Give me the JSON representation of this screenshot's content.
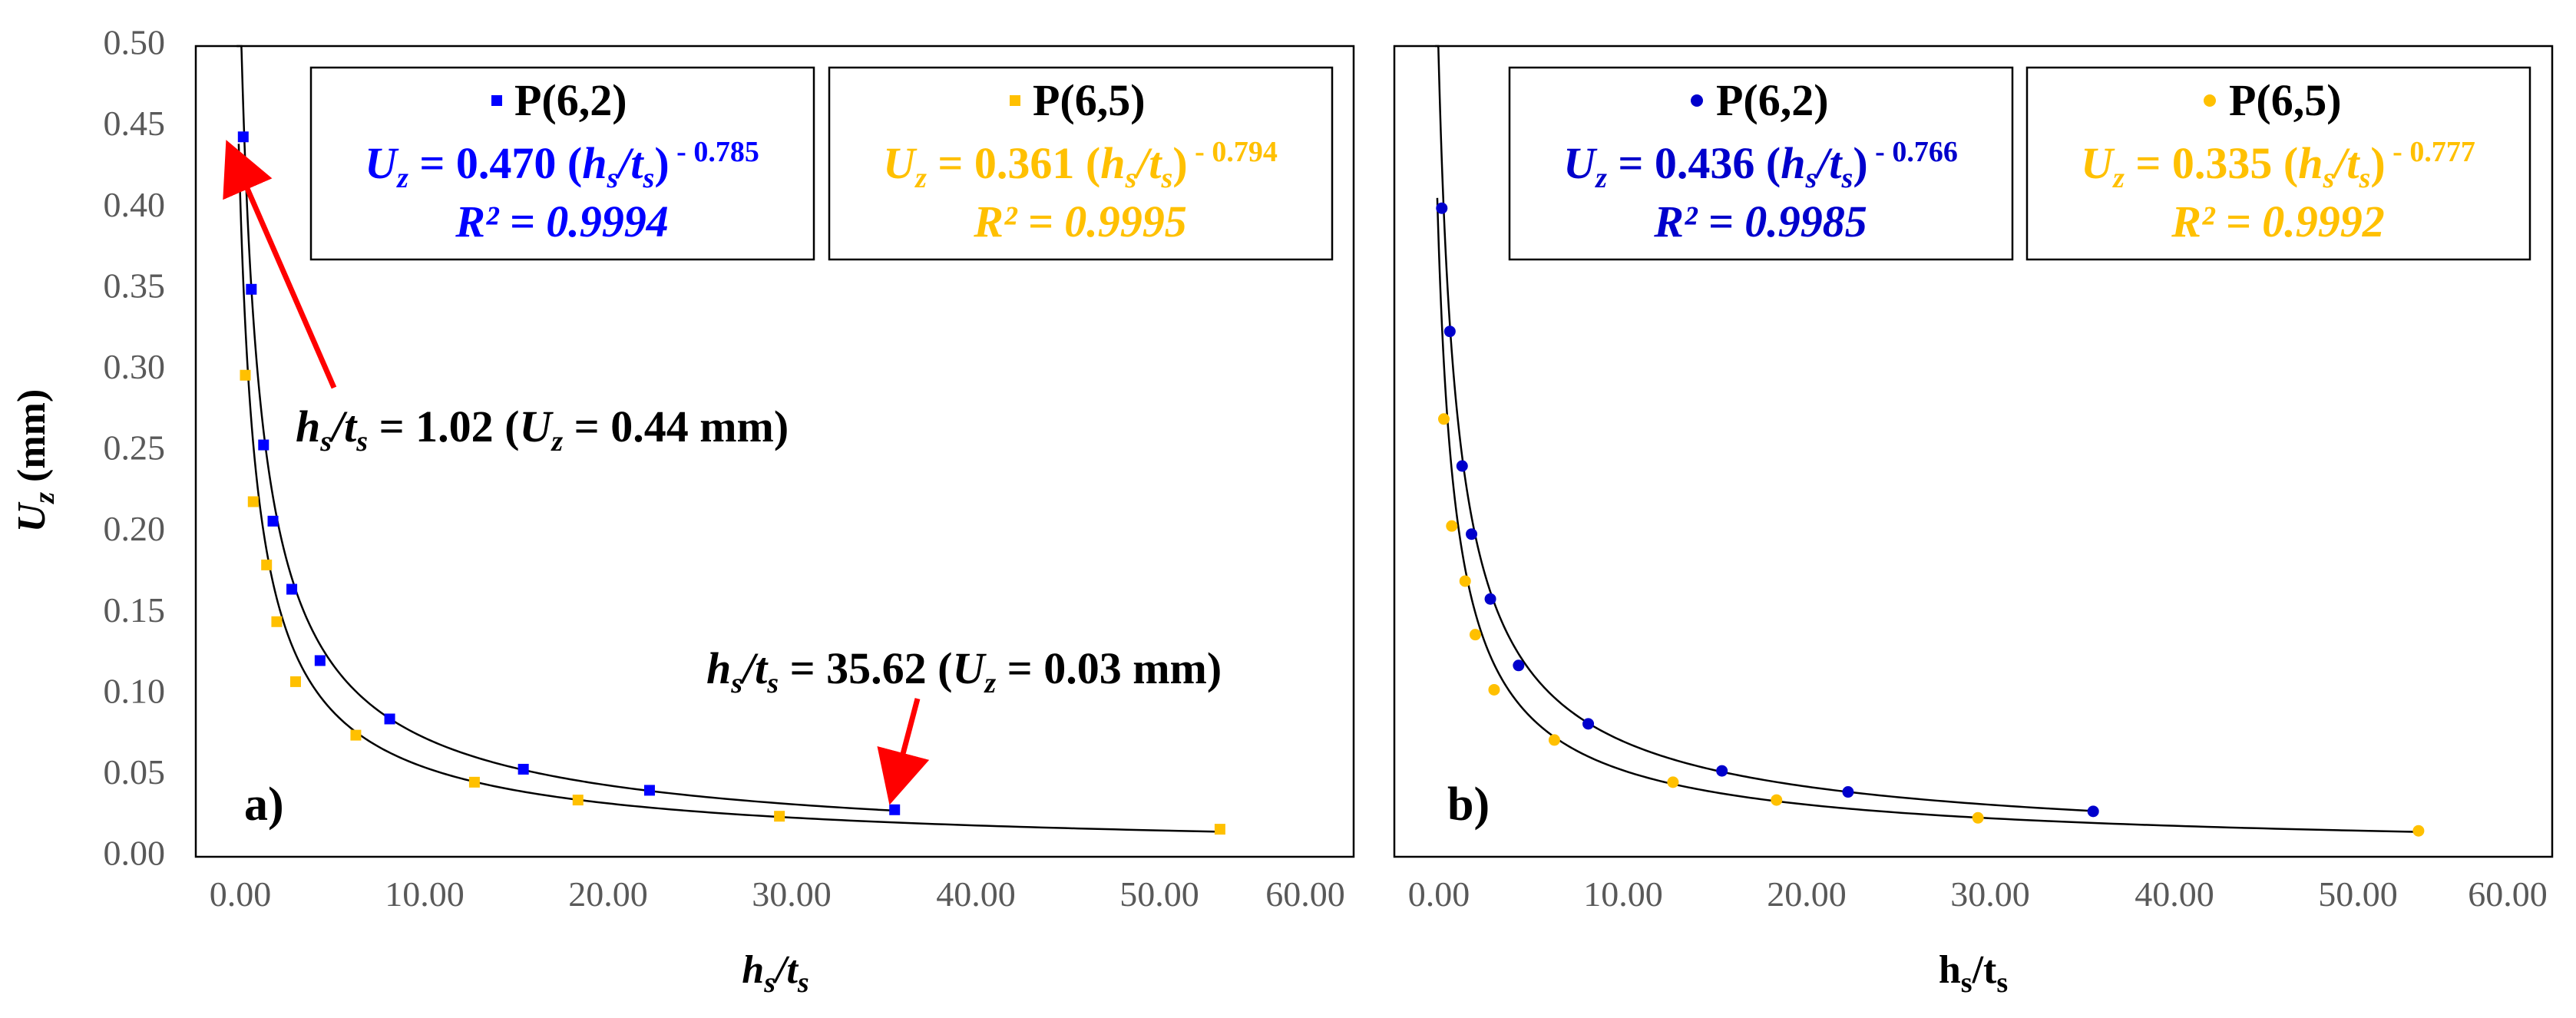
{
  "colors": {
    "blue": "#0000FF",
    "yellow": "#FFC000",
    "grid_tick": "#595959",
    "arrow": "#FF0000"
  },
  "y_axis": {
    "label_main": "U",
    "label_sub": "z",
    "label_unit": " (mm)",
    "ticks": [
      "0.00",
      "0.05",
      "0.10",
      "0.15",
      "0.20",
      "0.25",
      "0.30",
      "0.35",
      "0.40",
      "0.45",
      "0.50"
    ]
  },
  "chart_data": [
    {
      "type": "scatter",
      "panel_label": "a)",
      "xlabel_main": "h",
      "xlabel_sub1": "s",
      "xlabel_sep": "/t",
      "xlabel_sub2": "s",
      "ylabel": "Uz (mm)",
      "xlim": [
        -1.5,
        60
      ],
      "ylim": [
        0,
        0.5
      ],
      "x_ticks": [
        "0.00",
        "10.00",
        "20.00",
        "30.00",
        "40.00",
        "50.00",
        "60.00"
      ],
      "series": [
        {
          "name": "P(6,2)",
          "marker": "square",
          "color": "#0000FF",
          "coef": 0.47,
          "exp": -0.785,
          "r2": "0.9994",
          "x": [
            1.02,
            1.45,
            2.1,
            2.6,
            3.6,
            5.1,
            8.8,
            15.9,
            22.6,
            35.62
          ],
          "y": [
            0.444,
            0.35,
            0.254,
            0.207,
            0.165,
            0.121,
            0.085,
            0.054,
            0.041,
            0.029
          ],
          "legend_name": "P(6,2)",
          "eq_prefix": "U",
          "eq_sub": "z",
          "eq_mid": " = 0.470 (",
          "eq_h": "h",
          "eq_hs": "s",
          "eq_slash": "/",
          "eq_t": "t",
          "eq_ts": "s",
          "eq_close": ")",
          "eq_exp": " - 0.785",
          "r2_label": "R² = 0.9994"
        },
        {
          "name": "P(6,5)",
          "marker": "square",
          "color": "#FFC000",
          "coef": 0.361,
          "exp": -0.794,
          "r2": "0.9995",
          "x": [
            1.13,
            1.55,
            2.26,
            2.8,
            3.8,
            7.0,
            13.3,
            18.8,
            29.5,
            52.9
          ],
          "y": [
            0.297,
            0.219,
            0.18,
            0.145,
            0.108,
            0.075,
            0.046,
            0.035,
            0.025,
            0.017
          ],
          "legend_name": "P(6,5)",
          "eq_prefix": "U",
          "eq_sub": "z",
          "eq_mid": " = 0.361 (",
          "eq_h": "h",
          "eq_hs": "s",
          "eq_slash": "/",
          "eq_t": "t",
          "eq_ts": "s",
          "eq_close": ")",
          "eq_exp": " - 0.794",
          "r2_label": "R² = 0.9995"
        }
      ],
      "annotations": [
        {
          "h": "h",
          "hs": "s",
          "sep": "/t",
          "ts": "s",
          "text": " = 1.02 (",
          "u": "U",
          "uz": "z",
          "tail": " = 0.44 mm)",
          "point_x": 1.02,
          "point_y": 0.444
        },
        {
          "h": "h",
          "hs": "s",
          "sep": "/t",
          "ts": "s",
          "text": " = 35.62 (",
          "u": "U",
          "uz": "z",
          "tail": " = 0.03 mm)",
          "point_x": 35.62,
          "point_y": 0.029
        }
      ]
    },
    {
      "type": "scatter",
      "panel_label": "b)",
      "xlabel_main": "h",
      "xlabel_sub1": "s",
      "xlabel_sep": "/t",
      "xlabel_sub2": "s",
      "ylabel": "Uz (mm)",
      "xlim": [
        -1.5,
        60
      ],
      "ylim": [
        0,
        0.5
      ],
      "x_ticks": [
        "0.00",
        "10.00",
        "20.00",
        "30.00",
        "40.00",
        "50.00",
        "60.00"
      ],
      "series": [
        {
          "name": "P(6,2)",
          "marker": "circle",
          "color": "#0000CC",
          "coef": 0.436,
          "exp": -0.766,
          "r2": "0.9985",
          "x": [
            1.02,
            1.45,
            2.1,
            2.6,
            3.6,
            5.1,
            8.8,
            15.9,
            22.6,
            35.62
          ],
          "y": [
            0.4,
            0.324,
            0.241,
            0.199,
            0.159,
            0.118,
            0.082,
            0.053,
            0.04,
            0.028
          ],
          "legend_name": "P(6,2)",
          "eq_prefix": "U",
          "eq_sub": "z",
          "eq_mid": " = 0.436 (",
          "eq_h": "h",
          "eq_hs": "s",
          "eq_slash": "/",
          "eq_t": "t",
          "eq_ts": "s",
          "eq_close": ")",
          "eq_exp": " - 0.766",
          "r2_label": "R² = 0.9985"
        },
        {
          "name": "P(6,5)",
          "marker": "circle",
          "color": "#FFC000",
          "coef": 0.335,
          "exp": -0.777,
          "r2": "0.9992",
          "x": [
            1.13,
            1.55,
            2.26,
            2.8,
            3.8,
            7.0,
            13.3,
            18.8,
            29.5,
            52.9
          ],
          "y": [
            0.27,
            0.204,
            0.17,
            0.137,
            0.103,
            0.072,
            0.046,
            0.035,
            0.024,
            0.016
          ],
          "legend_name": "P(6,5)",
          "eq_prefix": "U",
          "eq_sub": "z",
          "eq_mid": " = 0.335 (",
          "eq_h": "h",
          "eq_hs": "s",
          "eq_slash": "/",
          "eq_t": "t",
          "eq_ts": "s",
          "eq_close": ")",
          "eq_exp": " - 0.777",
          "r2_label": "R² = 0.9992"
        }
      ],
      "annotations": []
    }
  ]
}
